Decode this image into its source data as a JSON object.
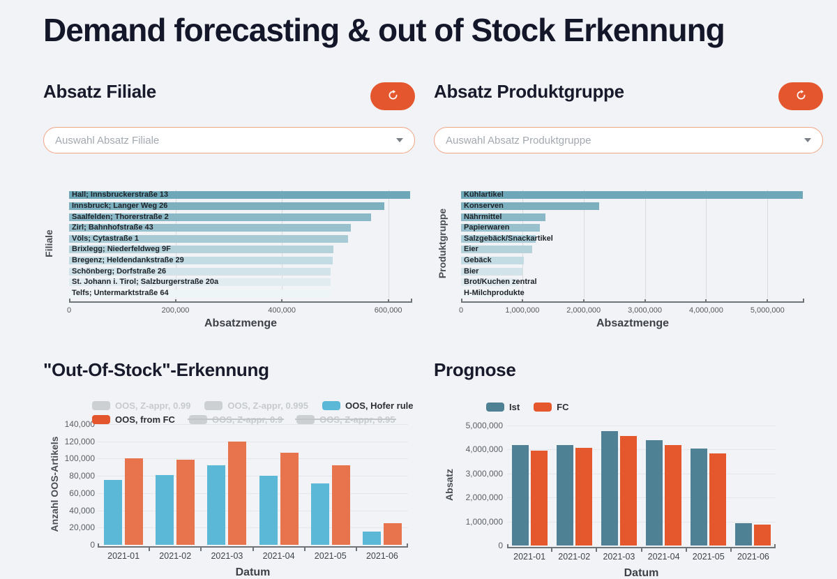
{
  "page": {
    "title": "Demand forecasting & out of Stock Erkennung",
    "background": "#f2f3f6",
    "accent": "#e4572e"
  },
  "icons": {
    "refresh": "circular-arrow-refresh",
    "dropdown_caret": "caret-down"
  },
  "sections": {
    "filiale": {
      "title": "Absatz Filiale",
      "dropdown_placeholder": "Auswahl Absatz Filiale"
    },
    "produktgruppe": {
      "title": "Absatz Produktgruppe",
      "dropdown_placeholder": "Auswahl Absatz Produktgruppe"
    },
    "oos": {
      "title": "\"Out-Of-Stock\"-Erkennung"
    },
    "prognose": {
      "title": "Prognose"
    }
  },
  "chart_data": [
    {
      "id": "filiale",
      "type": "bar",
      "orientation": "horizontal",
      "xlabel": "Absatzmenge",
      "ylabel": "Filiale",
      "categories": [
        "Hall; Innsbruckerstraße 13",
        "Innsbruck; Langer Weg 26",
        "Saalfelden; Thorerstraße 2",
        "Zirl; Bahnhofstraße 43",
        "Völs; Cytastraße 1",
        "Brixlegg; Niederfeldweg 9F",
        "Bregenz; Heldendankstraße 29",
        "Schönberg; Dorfstraße 26",
        "St. Johann i. Tirol; Salzburgerstraße 20a",
        "Telfs; Untermarktstraße 64"
      ],
      "values": [
        641000,
        593000,
        568000,
        529000,
        524000,
        497000,
        496000,
        492000,
        491000,
        490000
      ],
      "xlim": [
        0,
        645000
      ],
      "xticks": [
        0,
        200000,
        400000,
        600000
      ],
      "grid": "vertical",
      "bar_colors": [
        "#6ea7b8",
        "#7cb0bf",
        "#8ab8c6",
        "#99c1cd",
        "#a7cad4",
        "#b5d2db",
        "#c3dbe2",
        "#d2e4e9",
        "#e0ecf0",
        "#eef5f7"
      ]
    },
    {
      "id": "produktgruppe",
      "type": "bar",
      "orientation": "horizontal",
      "xlabel": "Absaztmenge",
      "ylabel": "Produktgruppe",
      "categories": [
        "Kühlartikel",
        "Konserven",
        "Nährmittel",
        "Papierwaren",
        "Salzgebäck/Snackartikel",
        "Eier",
        "Gebäck",
        "Bier",
        "Brot/Kuchen zentral",
        "H-Milchprodukte"
      ],
      "values": [
        5580000,
        2250000,
        1380000,
        1290000,
        1220000,
        1160000,
        1030000,
        1000000,
        930000,
        900000
      ],
      "xlim": [
        0,
        5600000
      ],
      "xticks": [
        0,
        1000000,
        2000000,
        3000000,
        4000000,
        5000000
      ],
      "grid": "vertical",
      "bar_colors": [
        "#6ea7b8",
        "#7cb0bf",
        "#8ab8c6",
        "#99c1cd",
        "#a7cad4",
        "#b5d2db",
        "#c3dbe2",
        "#d2e4e9",
        "#e0ecf0",
        "#eef5f7"
      ]
    },
    {
      "id": "oos",
      "type": "bar",
      "orientation": "vertical-grouped",
      "xlabel": "Datum",
      "ylabel": "Anzahl OOS-Artikels",
      "categories": [
        "2021-01",
        "2021-02",
        "2021-03",
        "2021-04",
        "2021-05",
        "2021-06"
      ],
      "series": [
        {
          "name": "OOS, Hofer rule",
          "color": "#5bb8d6",
          "values": [
            75000,
            81000,
            92000,
            80000,
            71000,
            15000
          ]
        },
        {
          "name": "OOS, from FC",
          "color": "#e8744d",
          "values": [
            100000,
            99000,
            120000,
            107000,
            92000,
            25000
          ]
        }
      ],
      "ylim": [
        0,
        140000
      ],
      "yticks": [
        0,
        20000,
        40000,
        60000,
        80000,
        100000,
        120000,
        140000
      ],
      "grid": "horizontal",
      "legend_position": "top",
      "legend_rows": [
        [
          {
            "label": "OOS, Z-appr, 0.99",
            "color": "#cdd0d3",
            "state": "off"
          },
          {
            "label": "OOS, Z-appr, 0.995",
            "color": "#cdd0d3",
            "state": "off"
          },
          {
            "label": "OOS, Hofer rule",
            "color": "#5bb8d6",
            "state": "on"
          }
        ],
        [
          {
            "label": "OOS, from FC",
            "color": "#e4572e",
            "state": "on"
          },
          {
            "label": "OOS, Z-appr, 0.9",
            "color": "#cdd0d3",
            "state": "off-struck"
          },
          {
            "label": "OOS, Z-appr, 0.95",
            "color": "#cdd0d3",
            "state": "off-struck"
          }
        ]
      ]
    },
    {
      "id": "prognose",
      "type": "bar",
      "orientation": "vertical-grouped",
      "xlabel": "Datum",
      "ylabel": "Absatz",
      "categories": [
        "2021-01",
        "2021-02",
        "2021-03",
        "2021-04",
        "2021-05",
        "2021-06"
      ],
      "series": [
        {
          "name": "Ist",
          "color": "#4d8193",
          "values": [
            4180000,
            4200000,
            4780000,
            4400000,
            4050000,
            930000
          ]
        },
        {
          "name": "FC",
          "color": "#e5572d",
          "values": [
            3950000,
            4060000,
            4550000,
            4180000,
            3830000,
            880000
          ]
        }
      ],
      "ylim": [
        0,
        5000000
      ],
      "yticks": [
        0,
        1000000,
        2000000,
        3000000,
        4000000,
        5000000
      ],
      "grid": "horizontal",
      "legend_position": "top",
      "legend_rows": [
        [
          {
            "label": "Ist",
            "color": "#4d8193",
            "state": "on"
          },
          {
            "label": "FC",
            "color": "#e5572d",
            "state": "on"
          }
        ]
      ]
    }
  ]
}
